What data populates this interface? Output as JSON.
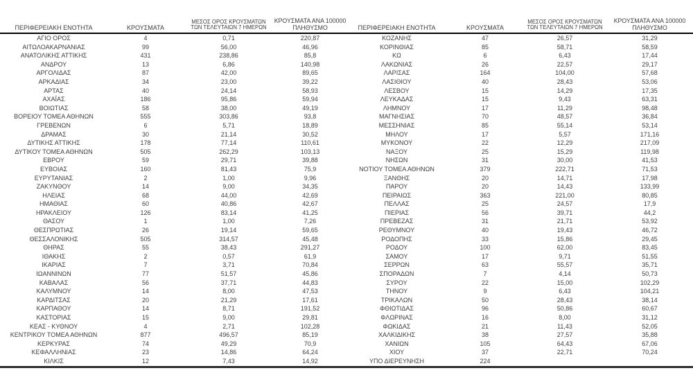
{
  "colors": {
    "background": "#ffffff",
    "text": "#3d3d3d",
    "header_rule": "#000000",
    "bottom_rule": "#2b2b2b"
  },
  "headers": {
    "region": "ΠΕΡΙΦΕΡΕΙΑΚΗ ΕΝΟΤΗΤΑ",
    "cases": "ΚΡΟΥΣΜΑΤΑ",
    "avg7_lines": [
      "ΜΕΣΟΣ ΟΡΟΣ ΚΡΟΥΣΜΑΤΩΝ",
      "ΤΩΝ ΤΕΛΕΥΤΑΙΩΝ 7 ΗΜΕΡΩΝ"
    ],
    "per100k_lines": [
      "ΚΡΟΥΣΜΑΤΑ ΑΝΑ 100000",
      "ΠΛΗΘΥΣΜΟ"
    ]
  },
  "left_table": {
    "rows": [
      [
        "ΑΓΙΟ ΟΡΟΣ",
        "4",
        "0,71",
        "220,87"
      ],
      [
        "ΑΙΤΩΛΟΑΚΑΡΝΑΝΙΑΣ",
        "99",
        "56,00",
        "46,96"
      ],
      [
        "ΑΝΑΤΟΛΙΚΗΣ ΑΤΤΙΚΗΣ",
        "431",
        "238,86",
        "85,8"
      ],
      [
        "ΑΝΔΡΟΥ",
        "13",
        "6,86",
        "140,98"
      ],
      [
        "ΑΡΓΟΛΙΔΑΣ",
        "87",
        "42,00",
        "89,65"
      ],
      [
        "ΑΡΚΑΔΙΑΣ",
        "34",
        "23,00",
        "39,22"
      ],
      [
        "ΑΡΤΑΣ",
        "40",
        "24,14",
        "58,93"
      ],
      [
        "ΑΧΑΪΑΣ",
        "186",
        "95,86",
        "59,94"
      ],
      [
        "ΒΟΙΩΤΙΑΣ",
        "58",
        "38,00",
        "49,19"
      ],
      [
        "ΒΟΡΕΙΟΥ ΤΟΜΕΑ ΑΘΗΝΩΝ",
        "555",
        "303,86",
        "93,8"
      ],
      [
        "ΓΡΕΒΕΝΩΝ",
        "6",
        "5,71",
        "18,89"
      ],
      [
        "ΔΡΑΜΑΣ",
        "30",
        "21,14",
        "30,52"
      ],
      [
        "ΔΥΤΙΚΗΣ ΑΤΤΙΚΗΣ",
        "178",
        "77,14",
        "110,61"
      ],
      [
        "ΔΥΤΙΚΟΥ ΤΟΜΕΑ ΑΘΗΝΩΝ",
        "505",
        "262,29",
        "103,13"
      ],
      [
        "ΕΒΡΟΥ",
        "59",
        "29,71",
        "39,88"
      ],
      [
        "ΕΥΒΟΙΑΣ",
        "160",
        "81,43",
        "75,9"
      ],
      [
        "ΕΥΡΥΤΑΝΙΑΣ",
        "2",
        "1,00",
        "9,96"
      ],
      [
        "ΖΑΚΥΝΘΟΥ",
        "14",
        "9,00",
        "34,35"
      ],
      [
        "ΗΛΕΙΑΣ",
        "68",
        "44,00",
        "42,69"
      ],
      [
        "ΗΜΑΘΙΑΣ",
        "60",
        "40,86",
        "42,67"
      ],
      [
        "ΗΡΑΚΛΕΙΟΥ",
        "126",
        "83,14",
        "41,25"
      ],
      [
        "ΘΑΣΟΥ",
        "1",
        "1,00",
        "7,26"
      ],
      [
        "ΘΕΣΠΡΩΤΙΑΣ",
        "26",
        "19,14",
        "59,65"
      ],
      [
        "ΘΕΣΣΑΛΟΝΙΚΗΣ",
        "505",
        "314,57",
        "45,48"
      ],
      [
        "ΘΗΡΑΣ",
        "55",
        "38,43",
        "291,27"
      ],
      [
        "ΙΘΑΚΗΣ",
        "2",
        "0,57",
        "61,9"
      ],
      [
        "ΙΚΑΡΙΑΣ",
        "7",
        "3,71",
        "70,84"
      ],
      [
        "ΙΩΑΝΝΙΝΩΝ",
        "77",
        "51,57",
        "45,86"
      ],
      [
        "ΚΑΒΑΛΑΣ",
        "56",
        "37,71",
        "44,83"
      ],
      [
        "ΚΑΛΥΜΝΟΥ",
        "14",
        "8,00",
        "47,53"
      ],
      [
        "ΚΑΡΔΙΤΣΑΣ",
        "20",
        "21,29",
        "17,61"
      ],
      [
        "ΚΑΡΠΑΘΟΥ",
        "14",
        "8,71",
        "191,52"
      ],
      [
        "ΚΑΣΤΟΡΙΑΣ",
        "15",
        "9,00",
        "29,81"
      ],
      [
        "ΚΕΑΣ - ΚΥΘΝΟΥ",
        "4",
        "2,71",
        "102,28"
      ],
      [
        "ΚΕΝΤΡΙΚΟΥ ΤΟΜΕΑ ΑΘΗΝΩΝ",
        "877",
        "496,57",
        "85,19"
      ],
      [
        "ΚΕΡΚΥΡΑΣ",
        "74",
        "49,29",
        "70,9"
      ],
      [
        "ΚΕΦΑΛΛΗΝΙΑΣ",
        "23",
        "14,86",
        "64,24"
      ],
      [
        "ΚΙΛΚΙΣ",
        "12",
        "7,43",
        "14,92"
      ]
    ]
  },
  "right_table": {
    "rows": [
      [
        "ΚΟΖΑΝΗΣ",
        "47",
        "26,57",
        "31,29"
      ],
      [
        "ΚΟΡΙΝΘΙΑΣ",
        "85",
        "58,71",
        "58,59"
      ],
      [
        "ΚΩ",
        "6",
        "6,43",
        "17,44"
      ],
      [
        "ΛΑΚΩΝΙΑΣ",
        "26",
        "22,57",
        "29,17"
      ],
      [
        "ΛΑΡΙΣΑΣ",
        "164",
        "104,00",
        "57,68"
      ],
      [
        "ΛΑΣΙΘΙΟΥ",
        "40",
        "28,43",
        "53,06"
      ],
      [
        "ΛΕΣΒΟΥ",
        "15",
        "14,29",
        "17,35"
      ],
      [
        "ΛΕΥΚΑΔΑΣ",
        "15",
        "9,43",
        "63,31"
      ],
      [
        "ΛΗΜΝΟΥ",
        "17",
        "11,29",
        "98,48"
      ],
      [
        "ΜΑΓΝΗΣΙΑΣ",
        "70",
        "48,57",
        "36,84"
      ],
      [
        "ΜΕΣΣΗΝΙΑΣ",
        "85",
        "55,14",
        "53,14"
      ],
      [
        "ΜΗΛΟΥ",
        "17",
        "5,57",
        "171,16"
      ],
      [
        "ΜΥΚΟΝΟΥ",
        "22",
        "12,29",
        "217,09"
      ],
      [
        "ΝΑΞΟΥ",
        "25",
        "15,29",
        "119,98"
      ],
      [
        "ΝΗΣΩΝ",
        "31",
        "30,00",
        "41,53"
      ],
      [
        "ΝΟΤΙΟΥ ΤΟΜΕΑ ΑΘΗΝΩΝ",
        "379",
        "222,71",
        "71,53"
      ],
      [
        "ΞΑΝΘΗΣ",
        "20",
        "14,71",
        "17,98"
      ],
      [
        "ΠΑΡΟΥ",
        "20",
        "14,43",
        "133,99"
      ],
      [
        "ΠΕΙΡΑΙΩΣ",
        "363",
        "221,00",
        "80,85"
      ],
      [
        "ΠΕΛΛΑΣ",
        "25",
        "24,57",
        "17,9"
      ],
      [
        "ΠΙΕΡΙΑΣ",
        "56",
        "39,71",
        "44,2"
      ],
      [
        "ΠΡΕΒΕΖΑΣ",
        "31",
        "21,71",
        "53,92"
      ],
      [
        "ΡΕΘΥΜΝΟΥ",
        "40",
        "19,43",
        "46,72"
      ],
      [
        "ΡΟΔΟΠΗΣ",
        "33",
        "15,86",
        "29,45"
      ],
      [
        "ΡΟΔΟΥ",
        "100",
        "62,00",
        "83,45"
      ],
      [
        "ΣΑΜΟΥ",
        "17",
        "9,71",
        "51,55"
      ],
      [
        "ΣΕΡΡΩΝ",
        "63",
        "55,57",
        "35,71"
      ],
      [
        "ΣΠΟΡΑΔΩΝ",
        "7",
        "4,14",
        "50,73"
      ],
      [
        "ΣΥΡΟΥ",
        "22",
        "15,00",
        "102,29"
      ],
      [
        "ΤΗΝΟΥ",
        "9",
        "6,43",
        "104,21"
      ],
      [
        "ΤΡΙΚΑΛΩΝ",
        "50",
        "28,43",
        "38,14"
      ],
      [
        "ΦΘΙΩΤΙΔΑΣ",
        "96",
        "50,86",
        "60,67"
      ],
      [
        "ΦΛΩΡΙΝΑΣ",
        "16",
        "8,00",
        "31,12"
      ],
      [
        "ΦΩΚΙΔΑΣ",
        "21",
        "11,43",
        "52,05"
      ],
      [
        "ΧΑΛΚΙΔΙΚΗΣ",
        "38",
        "27,57",
        "35,88"
      ],
      [
        "ΧΑΝΙΩΝ",
        "105",
        "64,43",
        "67,06"
      ],
      [
        "ΧΙΟΥ",
        "37",
        "22,71",
        "70,24"
      ],
      [
        "ΥΠΟ ΔΙΕΡΕΥΝΗΣΗ",
        "224",
        "",
        ""
      ]
    ]
  }
}
